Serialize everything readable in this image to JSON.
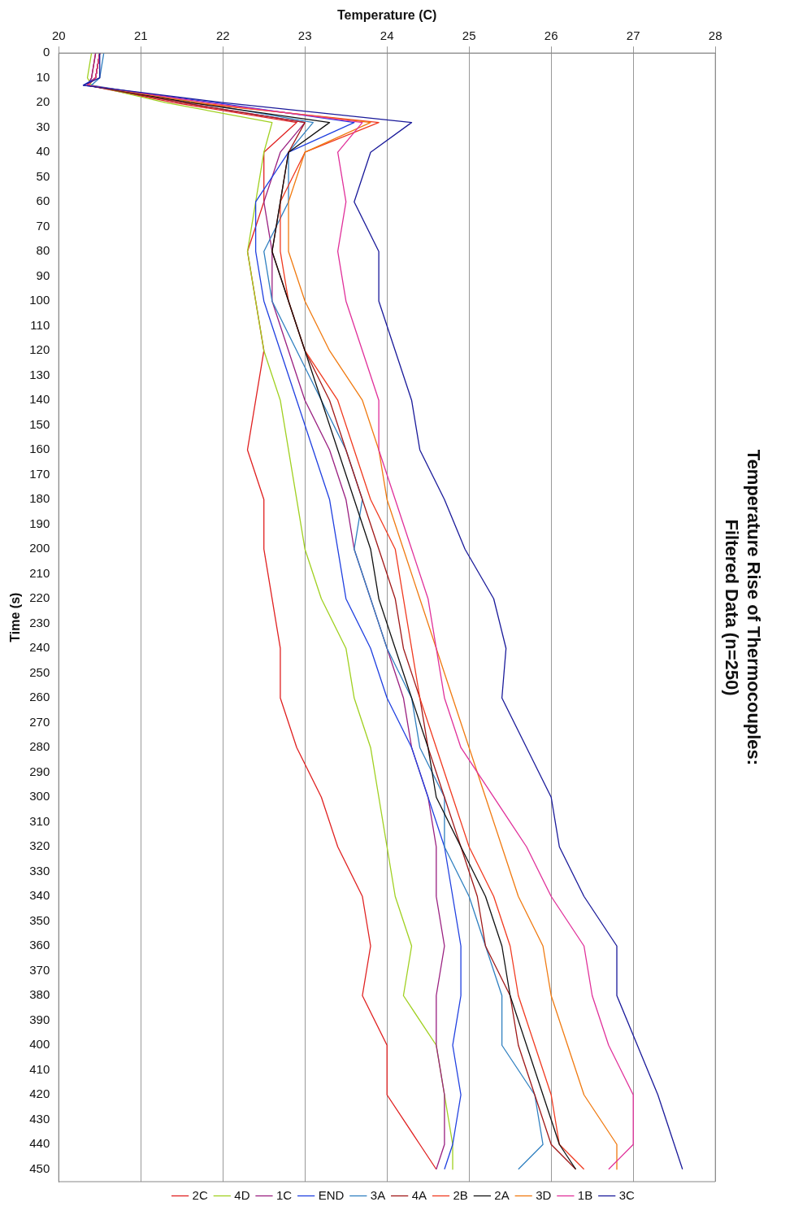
{
  "chart_data": {
    "type": "line",
    "title": "Temperature Rise of Thermocouples:\nFiltered Data (n=250)",
    "xlabel": "Temperature (C)",
    "ylabel": "Time (s)",
    "xlim": [
      20,
      28
    ],
    "xticks": [
      20,
      21,
      22,
      23,
      24,
      25,
      26,
      27,
      28
    ],
    "ylim": [
      455,
      0
    ],
    "yticks": [
      0,
      10,
      20,
      30,
      40,
      50,
      60,
      70,
      80,
      90,
      100,
      110,
      120,
      130,
      140,
      150,
      160,
      170,
      180,
      190,
      200,
      210,
      220,
      230,
      240,
      250,
      260,
      270,
      280,
      290,
      300,
      310,
      320,
      330,
      340,
      350,
      360,
      370,
      380,
      390,
      400,
      410,
      420,
      430,
      440,
      450
    ],
    "grid": "x",
    "legend": "bottom",
    "marker": "none",
    "line_style": "solid",
    "series": [
      {
        "name": "3C",
        "color": "#1a1a9a",
        "values": [
          0,
          10,
          13,
          20,
          28,
          40,
          60,
          80,
          100,
          120,
          140,
          160,
          180,
          200,
          220,
          240,
          260,
          280,
          300,
          320,
          340,
          360,
          380,
          400,
          420,
          440,
          450
        ],
        "x": [
          20.5,
          20.5,
          20.3,
          22.0,
          24.3,
          23.8,
          23.6,
          23.9,
          23.9,
          24.1,
          24.3,
          24.4,
          24.7,
          24.95,
          25.3,
          25.45,
          25.4,
          25.7,
          26.0,
          26.1,
          26.4,
          26.8,
          26.8,
          27.05,
          27.3,
          27.5,
          27.6
        ]
      },
      {
        "name": "1B",
        "color": "#e0309a",
        "values": [
          0,
          10,
          13,
          20,
          28,
          40,
          60,
          80,
          100,
          120,
          140,
          160,
          180,
          200,
          220,
          240,
          260,
          280,
          300,
          320,
          340,
          360,
          380,
          400,
          420,
          440,
          450
        ],
        "x": [
          20.5,
          20.45,
          20.35,
          21.8,
          23.7,
          23.4,
          23.5,
          23.4,
          23.5,
          23.7,
          23.9,
          23.9,
          24.1,
          24.3,
          24.5,
          24.6,
          24.7,
          24.9,
          25.3,
          25.7,
          26.0,
          26.4,
          26.5,
          26.7,
          27.0,
          27.0,
          26.7
        ]
      },
      {
        "name": "3D",
        "color": "#f07a10",
        "values": [
          0,
          10,
          13,
          20,
          28,
          40,
          60,
          80,
          100,
          120,
          140,
          160,
          180,
          200,
          220,
          240,
          260,
          280,
          300,
          320,
          340,
          360,
          380,
          400,
          420,
          440,
          450
        ],
        "x": [
          20.5,
          20.45,
          20.35,
          21.7,
          23.8,
          23.0,
          22.8,
          22.8,
          23.0,
          23.3,
          23.7,
          23.9,
          24.0,
          24.2,
          24.4,
          24.6,
          24.8,
          25.0,
          25.2,
          25.4,
          25.6,
          25.9,
          26.0,
          26.2,
          26.4,
          26.8,
          26.8
        ]
      },
      {
        "name": "2A",
        "color": "#101010",
        "values": [
          0,
          10,
          13,
          20,
          28,
          40,
          60,
          80,
          100,
          120,
          140,
          160,
          180,
          200,
          220,
          240,
          260,
          280,
          300,
          320,
          340,
          360,
          380,
          400,
          420,
          440,
          450
        ],
        "x": [
          20.5,
          20.45,
          20.35,
          21.6,
          23.3,
          22.8,
          22.7,
          22.6,
          22.8,
          23.0,
          23.2,
          23.4,
          23.6,
          23.8,
          23.9,
          24.1,
          24.3,
          24.5,
          24.6,
          24.9,
          25.2,
          25.4,
          25.5,
          25.7,
          25.9,
          26.1,
          26.3
        ]
      },
      {
        "name": "2B",
        "color": "#f03a20",
        "values": [
          0,
          10,
          13,
          20,
          28,
          40,
          60,
          80,
          100,
          120,
          140,
          160,
          180,
          200,
          220,
          240,
          260,
          280,
          300,
          320,
          340,
          360,
          380,
          400,
          420,
          440,
          450
        ],
        "x": [
          20.5,
          20.45,
          20.35,
          21.6,
          23.9,
          23.0,
          22.7,
          22.7,
          22.8,
          23.0,
          23.4,
          23.6,
          23.8,
          24.1,
          24.2,
          24.3,
          24.4,
          24.6,
          24.8,
          25.0,
          25.3,
          25.5,
          25.6,
          25.8,
          26.0,
          26.1,
          26.4
        ]
      },
      {
        "name": "4A",
        "color": "#a01818",
        "values": [
          0,
          10,
          13,
          20,
          28,
          40,
          60,
          80,
          100,
          120,
          140,
          160,
          180,
          200,
          220,
          240,
          260,
          280,
          300,
          320,
          340,
          360,
          380,
          400,
          420,
          440,
          450
        ],
        "x": [
          20.5,
          20.45,
          20.35,
          21.5,
          23.0,
          22.8,
          22.7,
          22.6,
          22.8,
          23.0,
          23.3,
          23.5,
          23.7,
          23.9,
          24.1,
          24.2,
          24.4,
          24.5,
          24.7,
          24.9,
          25.1,
          25.2,
          25.5,
          25.6,
          25.8,
          26.0,
          26.3
        ]
      },
      {
        "name": "3A",
        "color": "#3080c0",
        "values": [
          0,
          10,
          13,
          20,
          28,
          40,
          60,
          80,
          100,
          120,
          140,
          160,
          180,
          200,
          220,
          240,
          260,
          280,
          300,
          320,
          340,
          360,
          380,
          400,
          420,
          440,
          450
        ],
        "x": [
          20.55,
          20.5,
          20.4,
          21.7,
          23.1,
          22.8,
          22.8,
          22.5,
          22.6,
          22.9,
          23.2,
          23.5,
          23.7,
          23.6,
          23.8,
          24.0,
          24.3,
          24.4,
          24.7,
          24.7,
          25.0,
          25.2,
          25.4,
          25.4,
          25.8,
          25.9,
          25.6
        ]
      },
      {
        "name": "END",
        "color": "#2040e0",
        "values": [
          0,
          10,
          13,
          20,
          28,
          40,
          60,
          80,
          100,
          120,
          140,
          160,
          180,
          200,
          220,
          240,
          260,
          280,
          300,
          320,
          340,
          360,
          380,
          400,
          420,
          440,
          450
        ],
        "x": [
          20.5,
          20.45,
          20.3,
          21.9,
          23.6,
          22.8,
          22.4,
          22.4,
          22.5,
          22.7,
          22.9,
          23.1,
          23.3,
          23.4,
          23.5,
          23.8,
          24.0,
          24.3,
          24.5,
          24.7,
          24.8,
          24.9,
          24.9,
          24.8,
          24.9,
          24.8,
          24.7
        ]
      },
      {
        "name": "1C",
        "color": "#9a2080",
        "values": [
          0,
          10,
          13,
          20,
          28,
          40,
          60,
          80,
          100,
          120,
          140,
          160,
          180,
          200,
          220,
          240,
          260,
          280,
          300,
          320,
          340,
          360,
          380,
          400,
          420,
          440,
          450
        ],
        "x": [
          20.45,
          20.4,
          20.35,
          21.5,
          23.0,
          22.7,
          22.5,
          22.6,
          22.6,
          22.8,
          23.0,
          23.3,
          23.5,
          23.6,
          23.8,
          24.0,
          24.2,
          24.3,
          24.5,
          24.6,
          24.6,
          24.7,
          24.6,
          24.6,
          24.7,
          24.7,
          24.6
        ]
      },
      {
        "name": "4D",
        "color": "#a0d020",
        "values": [
          0,
          10,
          13,
          20,
          28,
          40,
          60,
          80,
          100,
          120,
          140,
          160,
          180,
          200,
          220,
          240,
          260,
          280,
          300,
          320,
          340,
          360,
          380,
          400,
          420,
          440,
          450
        ],
        "x": [
          20.4,
          20.35,
          20.4,
          21.3,
          22.6,
          22.5,
          22.4,
          22.3,
          22.4,
          22.5,
          22.7,
          22.8,
          22.9,
          23.0,
          23.2,
          23.5,
          23.6,
          23.8,
          23.9,
          24.0,
          24.1,
          24.3,
          24.2,
          24.6,
          24.7,
          24.8,
          24.8
        ]
      },
      {
        "name": "2C",
        "color": "#e02020",
        "values": [
          0,
          10,
          13,
          20,
          28,
          40,
          60,
          80,
          100,
          120,
          140,
          160,
          180,
          200,
          220,
          240,
          260,
          280,
          300,
          320,
          340,
          360,
          380,
          400,
          420,
          440,
          450
        ],
        "x": [
          20.45,
          20.4,
          20.35,
          21.4,
          22.9,
          22.5,
          22.5,
          22.3,
          22.4,
          22.5,
          22.4,
          22.3,
          22.5,
          22.5,
          22.6,
          22.7,
          22.7,
          22.9,
          23.2,
          23.4,
          23.7,
          23.8,
          23.7,
          24.0,
          24.0,
          24.4,
          24.6
        ]
      }
    ]
  }
}
